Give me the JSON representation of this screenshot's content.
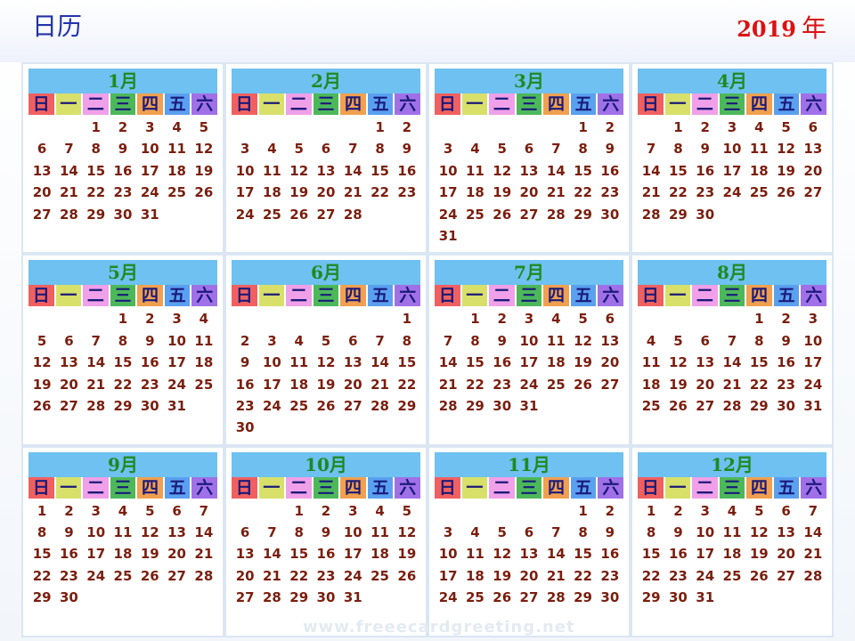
{
  "header": {
    "title": "日历",
    "year": "2019",
    "year_char": "年"
  },
  "weekdays": [
    "日",
    "一",
    "二",
    "三",
    "四",
    "五",
    "六"
  ],
  "weekday_colors": [
    "#f06060",
    "#d8e06a",
    "#f0a0e8",
    "#4cb85a",
    "#f0a050",
    "#5aa0f0",
    "#a070e8"
  ],
  "months": [
    {
      "name": "1月",
      "offset": 2,
      "days": 31
    },
    {
      "name": "2月",
      "offset": 5,
      "days": 28
    },
    {
      "name": "3月",
      "offset": 5,
      "days": 31
    },
    {
      "name": "4月",
      "offset": 1,
      "days": 30
    },
    {
      "name": "5月",
      "offset": 3,
      "days": 31
    },
    {
      "name": "6月",
      "offset": 6,
      "days": 30
    },
    {
      "name": "7月",
      "offset": 1,
      "days": 31
    },
    {
      "name": "8月",
      "offset": 4,
      "days": 31
    },
    {
      "name": "9月",
      "offset": 0,
      "days": 30
    },
    {
      "name": "10月",
      "offset": 2,
      "days": 31
    },
    {
      "name": "11月",
      "offset": 5,
      "days": 30
    },
    {
      "name": "12月",
      "offset": 0,
      "days": 31
    }
  ],
  "watermark": "www.freeecardgreeting.net"
}
